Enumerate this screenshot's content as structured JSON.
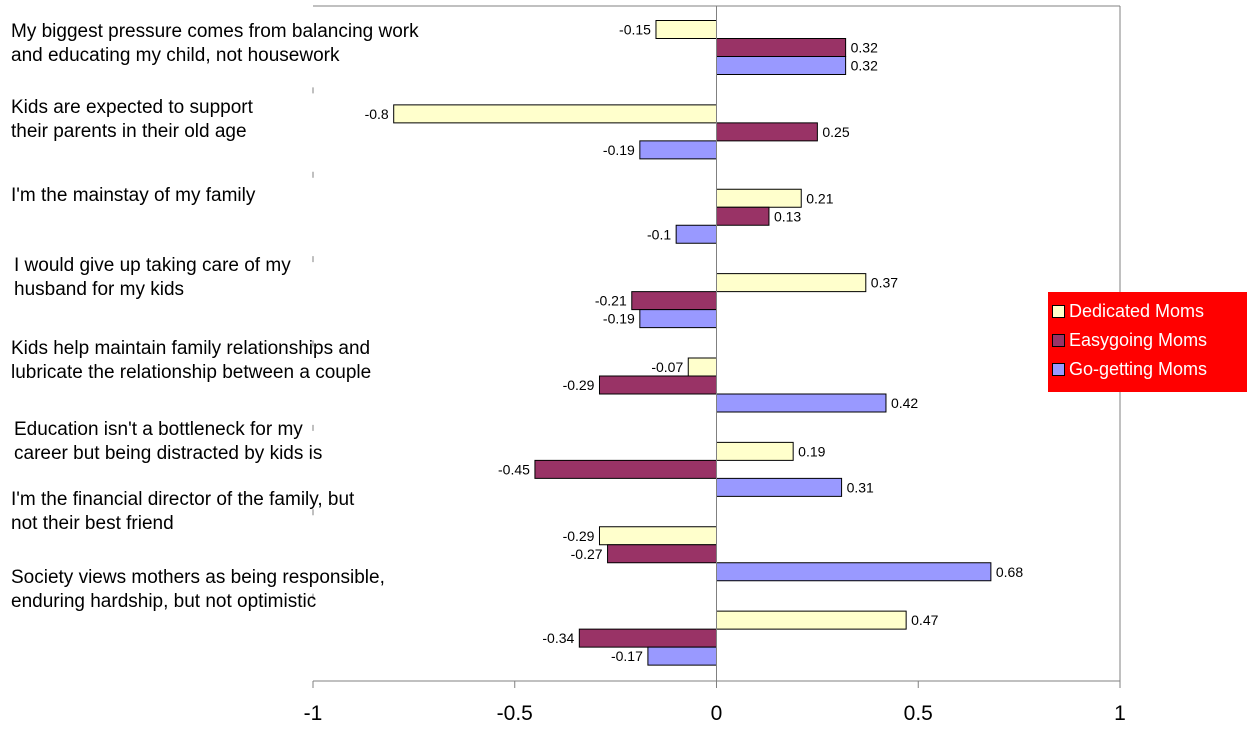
{
  "chart_data": {
    "type": "bar",
    "orientation": "horizontal",
    "categories": [
      "My biggest pressure comes from balancing work\nand educating my child, not housework",
      "Kids are expected to support\ntheir parents in their old age",
      "I'm the mainstay of my family",
      "I would give up taking care of my\nhusband for my kids",
      "Kids help maintain family relationships and\nlubricate the relationship between a couple",
      "Education isn't a bottleneck for my\ncareer but being distracted by kids is",
      "I'm the financial director of the family, but\nnot their best friend",
      "Society views mothers as being responsible,\nenduring hardship, but not optimistic"
    ],
    "series": [
      {
        "name": "Dedicated Moms",
        "color": "#ffffcc",
        "values": [
          -0.15,
          -0.8,
          0.21,
          0.37,
          -0.07,
          0.19,
          -0.29,
          0.47
        ]
      },
      {
        "name": "Easygoing Moms",
        "color": "#993366",
        "values": [
          0.32,
          0.25,
          0.13,
          -0.21,
          -0.29,
          -0.45,
          -0.27,
          -0.34
        ]
      },
      {
        "name": "Go-getting Moms",
        "color": "#9999ff",
        "values": [
          0.32,
          -0.19,
          -0.1,
          -0.19,
          0.42,
          0.31,
          0.68,
          -0.17
        ]
      }
    ],
    "xlim": [
      -1,
      1
    ],
    "xticks": [
      -1,
      -0.5,
      0,
      0.5,
      1
    ],
    "xtick_labels": [
      "-1",
      "-0.5",
      "0",
      "0.5",
      "1"
    ],
    "grid": false,
    "legend_position": "right",
    "legend_background": "#ff0000",
    "legend_text_color": "#ffffff",
    "title": "",
    "xlabel": "",
    "ylabel": ""
  }
}
